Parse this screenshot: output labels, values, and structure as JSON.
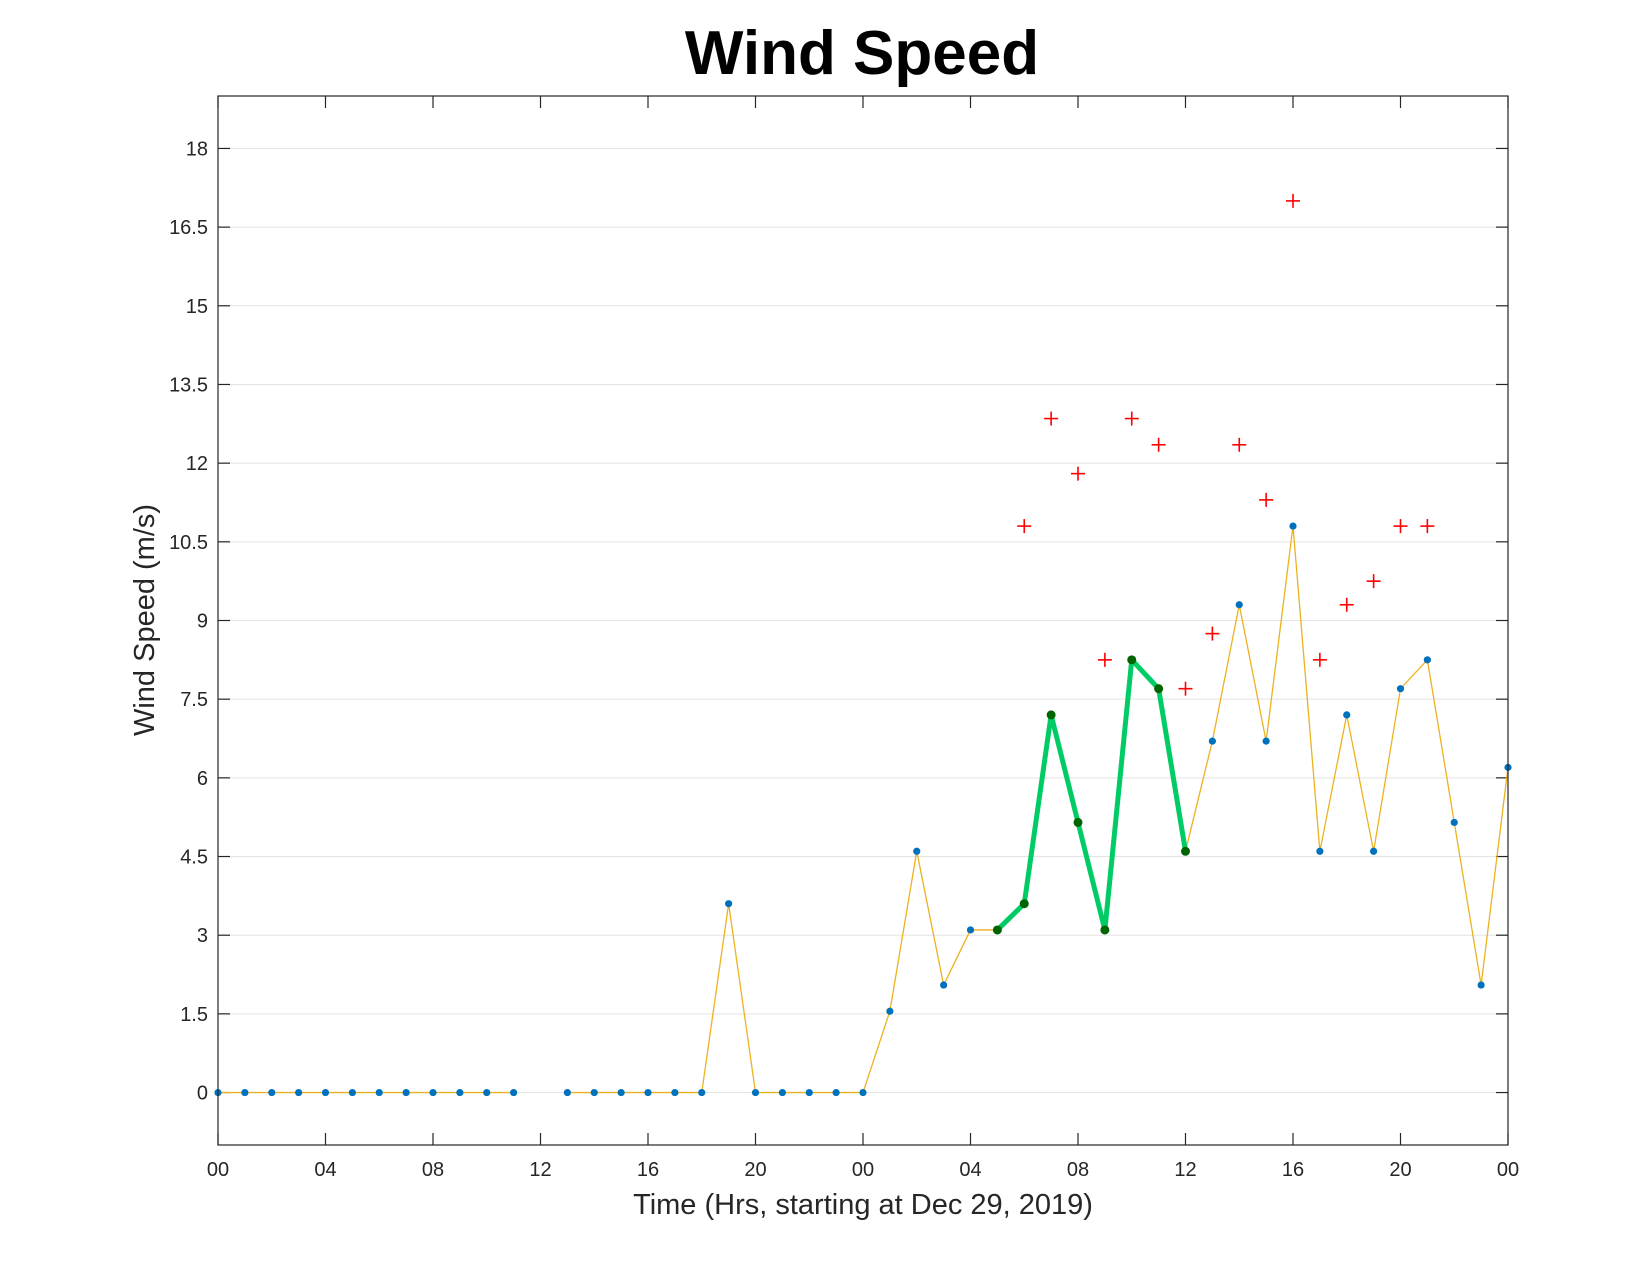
{
  "chart_data": {
    "type": "line",
    "title": "Wind Speed",
    "xlabel": "Time (Hrs, starting at Dec 29, 2019)",
    "ylabel": "Wind Speed (m/s)",
    "xlim": [
      0,
      48
    ],
    "ylim": [
      -1,
      19
    ],
    "x_ticks": [
      0,
      4,
      8,
      12,
      16,
      20,
      24,
      28,
      32,
      36,
      40,
      44,
      48
    ],
    "x_tick_labels": [
      "00",
      "04",
      "08",
      "12",
      "16",
      "20",
      "00",
      "04",
      "08",
      "12",
      "16",
      "20",
      "00"
    ],
    "y_ticks": [
      0,
      1.5,
      3,
      4.5,
      6,
      7.5,
      9,
      10.5,
      12,
      13.5,
      15,
      16.5,
      18
    ],
    "y_tick_labels": [
      "0",
      "1.5",
      "3",
      "4.5",
      "6",
      "7.5",
      "9",
      "10.5",
      "12",
      "13.5",
      "15",
      "16.5",
      "18"
    ],
    "grid": "horizontal",
    "series": [
      {
        "kind": "line-with-markers",
        "color": "#EDB120",
        "marker_color": "#0072BD",
        "points": [
          [
            0,
            0
          ],
          [
            1,
            0
          ],
          [
            2,
            0
          ],
          [
            3,
            0
          ],
          [
            4,
            0
          ],
          [
            5,
            0
          ],
          [
            6,
            0
          ],
          [
            7,
            0
          ],
          [
            8,
            0
          ],
          [
            9,
            0
          ],
          [
            10,
            0
          ],
          [
            11,
            0
          ],
          [
            13,
            0
          ],
          [
            14,
            0
          ],
          [
            15,
            0
          ],
          [
            16,
            0
          ],
          [
            17,
            0
          ],
          [
            18,
            0
          ],
          [
            19,
            3.6
          ],
          [
            20,
            0
          ],
          [
            21,
            0
          ],
          [
            22,
            0
          ],
          [
            23,
            0
          ],
          [
            24,
            0
          ],
          [
            25,
            1.55
          ],
          [
            26,
            4.6
          ],
          [
            27,
            2.05
          ],
          [
            28,
            3.1
          ],
          [
            29,
            3.1
          ],
          [
            30,
            3.6
          ],
          [
            31,
            7.2
          ],
          [
            32,
            5.15
          ],
          [
            33,
            3.1
          ],
          [
            34,
            8.25
          ],
          [
            35,
            7.7
          ],
          [
            36,
            4.6
          ],
          [
            37,
            6.7
          ],
          [
            38,
            9.3
          ],
          [
            39,
            6.7
          ],
          [
            40,
            10.8
          ],
          [
            41,
            4.6
          ],
          [
            42,
            7.2
          ],
          [
            43,
            4.6
          ],
          [
            44,
            7.7
          ],
          [
            45,
            8.25
          ],
          [
            46,
            5.15
          ],
          [
            47,
            2.05
          ],
          [
            48,
            6.2
          ]
        ]
      },
      {
        "kind": "highlight-line",
        "color": "#00CC66",
        "marker_color": "#006400",
        "points": [
          [
            29,
            3.1
          ],
          [
            30,
            3.6
          ],
          [
            31,
            7.2
          ],
          [
            32,
            5.15
          ],
          [
            33,
            3.1
          ],
          [
            34,
            8.25
          ],
          [
            35,
            7.7
          ],
          [
            36,
            4.6
          ]
        ]
      },
      {
        "kind": "plus-markers",
        "color": "#FF0000",
        "points": [
          [
            30,
            10.8
          ],
          [
            31,
            12.85
          ],
          [
            32,
            11.8
          ],
          [
            33,
            8.25
          ],
          [
            34,
            12.85
          ],
          [
            35,
            12.35
          ],
          [
            36,
            7.7
          ],
          [
            37,
            8.75
          ],
          [
            38,
            12.35
          ],
          [
            39,
            11.3
          ],
          [
            40,
            17
          ],
          [
            41,
            8.25
          ],
          [
            42,
            9.3
          ],
          [
            43,
            9.75
          ],
          [
            44,
            10.8
          ],
          [
            45,
            10.8
          ]
        ]
      }
    ]
  }
}
